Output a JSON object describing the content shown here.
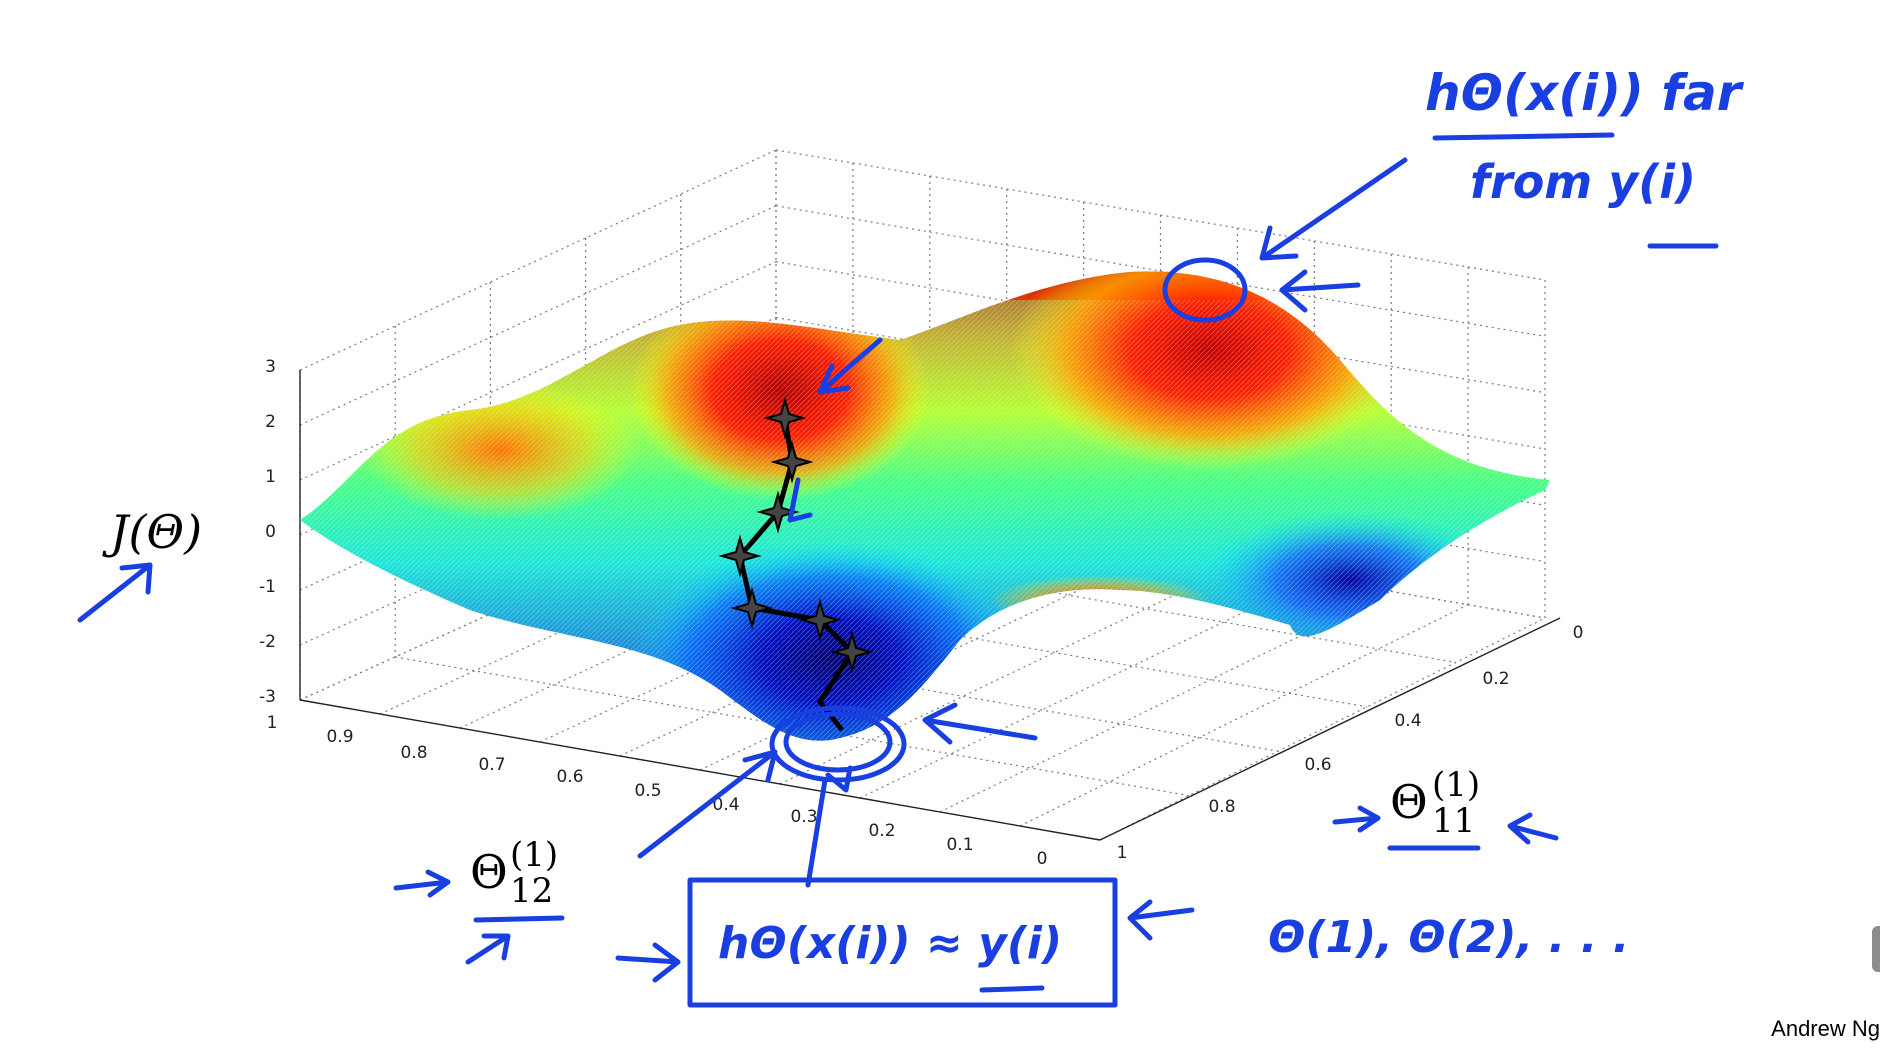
{
  "chart_data": {
    "type": "surface",
    "title": "",
    "zlabel": "J(Θ)",
    "xlabel": "Θ12(1)",
    "ylabel": "Θ11(1)",
    "x_ticks": [
      "1",
      "0.9",
      "0.8",
      "0.7",
      "0.6",
      "0.5",
      "0.4",
      "0.3",
      "0.2",
      "0.1",
      "0"
    ],
    "y_ticks": [
      "0",
      "0.2",
      "0.4",
      "0.6",
      "0.8",
      "1"
    ],
    "z_ticks": [
      "3",
      "2",
      "1",
      "0",
      "-1",
      "-2",
      "-3"
    ],
    "xlim": [
      0,
      1
    ],
    "ylim": [
      0,
      1
    ],
    "zlim": [
      -3,
      3
    ],
    "grid": true,
    "colormap": "jet",
    "colormap_stops": [
      "#00008f",
      "#0040ff",
      "#00d8ff",
      "#40ff80",
      "#e8ff00",
      "#ff9000",
      "#d00000"
    ],
    "descent_path_color": "#000000"
  },
  "annotations": {
    "axis_symbol": "Θ",
    "label_superscript": "(1)",
    "label_sub_x": "12",
    "label_sub_y": "11",
    "z_label": "J(Θ)",
    "hand_top_line1": "hΘ(x(i)) far",
    "hand_top_line2": "from y(i)",
    "hand_box_text": "hΘ(x(i)) ≈ y(i)",
    "hand_others": "Θ(1), Θ(2), . . .",
    "ink_color": "#1a3fe0"
  },
  "credit": "Andrew Ng"
}
